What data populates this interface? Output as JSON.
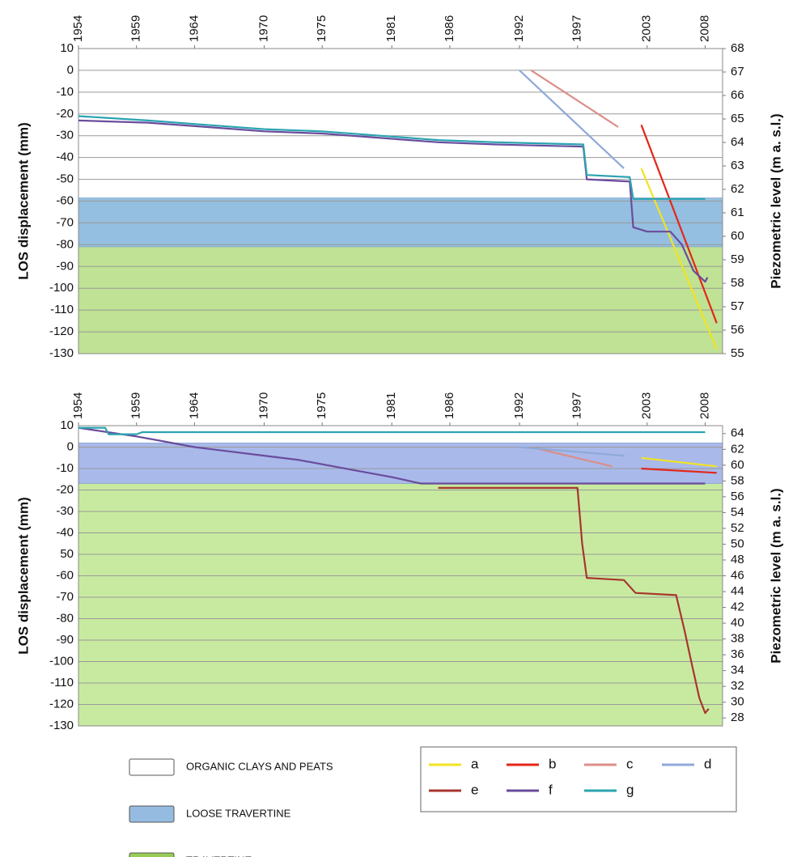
{
  "chart_data": [
    {
      "type": "line",
      "xlim": [
        1954,
        2009.5
      ],
      "xticks": [
        1954,
        1959,
        1964,
        1970,
        1975,
        1981,
        1986,
        1992,
        1997,
        2003,
        2008
      ],
      "ylim": [
        -130,
        10
      ],
      "yticks": [
        -130,
        -120,
        -110,
        -100,
        -90,
        -80,
        -70,
        -60,
        -50,
        -40,
        -30,
        -20,
        -10,
        0,
        10
      ],
      "y2lim": [
        55,
        68
      ],
      "y2ticks": [
        55,
        56,
        57,
        58,
        59,
        60,
        61,
        62,
        63,
        64,
        65,
        66,
        67,
        68
      ],
      "ylabel": "LOS displacement (mm)",
      "y2label": "Piezometric level (m a. s.l.)",
      "grid": true,
      "bands": [
        {
          "color": "#95bfe0",
          "ylim": [
            -81,
            -58.5
          ]
        },
        {
          "color": "#c0e294",
          "ylim": [
            -130,
            -81
          ]
        }
      ],
      "series": [
        {
          "name": "a",
          "color": "#f2e322",
          "x": [
            2002.5,
            2009
          ],
          "values": [
            -45,
            -128
          ]
        },
        {
          "name": "b",
          "color": "#e3261b",
          "x": [
            2002.5,
            2009
          ],
          "values": [
            -25,
            -116
          ]
        },
        {
          "name": "c",
          "color": "#dc8e8a",
          "x": [
            1993,
            2000.5
          ],
          "values": [
            0,
            -26
          ]
        },
        {
          "name": "d",
          "color": "#8fa9d8",
          "x": [
            1992,
            2001
          ],
          "values": [
            0,
            -45
          ]
        },
        {
          "name": "f",
          "color": "#6a4c9c",
          "x": [
            1954,
            1960,
            1965,
            1970,
            1975,
            1980,
            1985,
            1990,
            1997.5,
            1997.8,
            2001.5,
            2001.8,
            2003,
            2005,
            2006,
            2007,
            2008,
            2008.2
          ],
          "values": [
            -23,
            -24,
            -26,
            -28,
            -29,
            -31,
            -33,
            -34,
            -35,
            -50,
            -51,
            -72,
            -74,
            -74,
            -80,
            -92,
            -97,
            -95
          ]
        },
        {
          "name": "g",
          "color": "#2aa3b2",
          "x": [
            1954,
            1960,
            1965,
            1970,
            1975,
            1980,
            1985,
            1990,
            1997.5,
            1997.8,
            2001.5,
            2001.8,
            2008
          ],
          "values": [
            -21,
            -23,
            -25,
            -27,
            -28,
            -30,
            -32,
            -33,
            -34,
            -48,
            -49,
            -59,
            -59
          ]
        }
      ]
    },
    {
      "type": "line",
      "xlim": [
        1954,
        2009.5
      ],
      "xticks": [
        1954,
        1959,
        1964,
        1970,
        1975,
        1981,
        1986,
        1992,
        1997,
        2003,
        2008
      ],
      "ylim": [
        -130,
        10
      ],
      "yticks": [
        -130,
        -120,
        -110,
        -100,
        -90,
        -80,
        -70,
        -60,
        {
          "value": -50,
          "label": "50"
        },
        -40,
        -30,
        -20,
        -10,
        0,
        10
      ],
      "y2lim": [
        27,
        65
      ],
      "y2ticks": [
        28,
        30,
        32,
        34,
        36,
        38,
        40,
        42,
        44,
        46,
        48,
        50,
        52,
        54,
        56,
        58,
        60,
        62,
        64
      ],
      "ylabel": "LOS displacement (mm)",
      "y2label": "Piezometric level (m a. s.l.)",
      "grid": true,
      "bands": [
        {
          "color": "#a9b9ea",
          "ylim": [
            -17,
            2
          ]
        },
        {
          "color": "#c8eaa0",
          "ylim": [
            -130,
            -17
          ]
        }
      ],
      "series": [
        {
          "name": "a",
          "color": "#f2e322",
          "x": [
            2002.5,
            2009
          ],
          "values": [
            -5,
            -9
          ]
        },
        {
          "name": "b",
          "color": "#e3261b",
          "x": [
            2002.5,
            2009
          ],
          "values": [
            -10,
            -12
          ]
        },
        {
          "name": "c",
          "color": "#dc8e8a",
          "x": [
            1993,
            2000
          ],
          "values": [
            0,
            -9
          ]
        },
        {
          "name": "d",
          "color": "#8fa9d8",
          "x": [
            1992,
            2001
          ],
          "values": [
            0,
            -4
          ]
        },
        {
          "name": "e",
          "color": "#a8352f",
          "x": [
            1985,
            1997,
            1997.4,
            1997.8,
            2001,
            2002,
            2005.5,
            2006.2,
            2006.8,
            2007.5,
            2008,
            2008.3
          ],
          "values": [
            -19,
            -19,
            -45,
            -61,
            -62,
            -68,
            -69,
            -85,
            -100,
            -117,
            -124,
            -122
          ]
        },
        {
          "name": "f",
          "color": "#6a4c9c",
          "x": [
            1954,
            1956.5,
            1959,
            1961,
            1964,
            1967,
            1970,
            1973,
            1975,
            1978,
            1981,
            1983.5,
            2008
          ],
          "values": [
            9,
            7,
            5,
            3,
            0,
            -2,
            -4,
            -6,
            -8,
            -11,
            -14,
            -17,
            -17
          ]
        },
        {
          "name": "g",
          "color": "#2aa3b2",
          "x": [
            1954,
            1956.3,
            1956.6,
            1959,
            1959.5,
            2008
          ],
          "values": [
            9,
            9,
            6,
            6,
            7,
            7
          ]
        }
      ]
    }
  ],
  "layers": [
    {
      "name": "ORGANIC CLAYS AND PEATS",
      "color": "#ffffff"
    },
    {
      "name": "LOOSE TRAVERTINE",
      "color": "#95bce0"
    },
    {
      "name": "TRAVERTINE",
      "color": "#99cc55"
    }
  ]
}
